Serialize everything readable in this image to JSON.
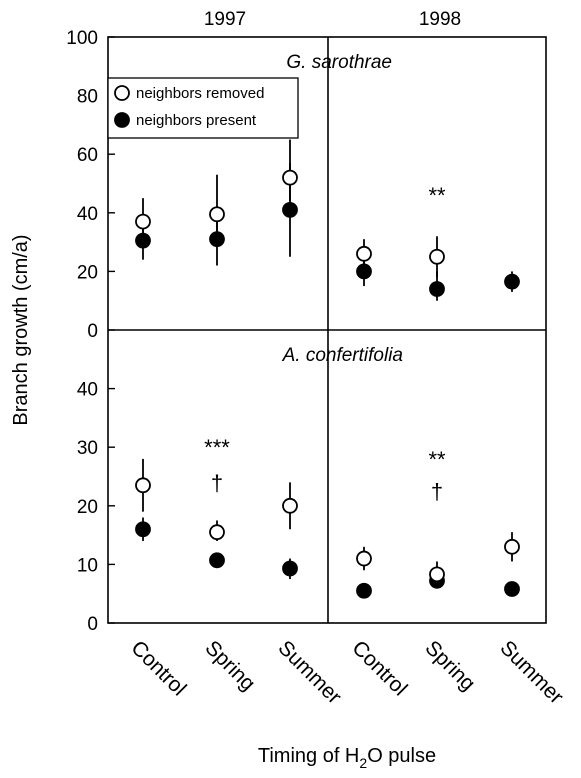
{
  "chart_data": {
    "type": "scatter",
    "ylabel": "Branch growth (cm/a)",
    "xlabel_parts": {
      "before": "Timing of H",
      "sub": "2",
      "after": "O pulse"
    },
    "years": [
      "1997",
      "1998"
    ],
    "categories": [
      "Control",
      "Spring",
      "Summer"
    ],
    "legend": {
      "removed": "neighbors removed",
      "present": "neighbors present",
      "placement": "top-left"
    },
    "panels": [
      {
        "species": "G. sarothrae",
        "ylim": [
          0,
          100
        ],
        "yticks": [
          "0",
          "20",
          "40",
          "60",
          "80",
          "100"
        ],
        "yticks_values": [
          0,
          20,
          40,
          60,
          80,
          100
        ],
        "groups": [
          {
            "year": "1997",
            "removed": [
              {
                "y": 37,
                "lo": 32,
                "hi": 45
              },
              {
                "y": 39.5,
                "lo": 32,
                "hi": 53
              },
              {
                "y": 52,
                "lo": 44,
                "hi": 65
              }
            ],
            "present": [
              {
                "y": 30.5,
                "lo": 24,
                "hi": 36
              },
              {
                "y": 31,
                "lo": 22,
                "hi": 40
              },
              {
                "y": 41,
                "lo": 25,
                "hi": 57
              }
            ],
            "annotations": []
          },
          {
            "year": "1998",
            "removed": [
              {
                "y": 26,
                "lo": 22,
                "hi": 31
              },
              {
                "y": 25,
                "lo": 18,
                "hi": 32
              },
              null
            ],
            "present": [
              {
                "y": 20,
                "lo": 15,
                "hi": 25
              },
              {
                "y": 14,
                "lo": 10,
                "hi": 20
              },
              {
                "y": 16.5,
                "lo": 13,
                "hi": 20
              }
            ],
            "annotations": [
              {
                "cat": 1,
                "text": "**",
                "y": 46
              }
            ]
          }
        ]
      },
      {
        "species": "A. confertifolia",
        "ylim": [
          0,
          50
        ],
        "yticks": [
          "0",
          "10",
          "20",
          "30",
          "40"
        ],
        "yticks_values": [
          0,
          10,
          20,
          30,
          40
        ],
        "groups": [
          {
            "year": "1997",
            "removed": [
              {
                "y": 23.5,
                "lo": 19,
                "hi": 28
              },
              {
                "y": 15.5,
                "lo": 14,
                "hi": 17.5
              },
              {
                "y": 20,
                "lo": 16,
                "hi": 24
              }
            ],
            "present": [
              {
                "y": 16,
                "lo": 14,
                "hi": 18
              },
              {
                "y": 10.7,
                "lo": 9.5,
                "hi": 12
              },
              {
                "y": 9.3,
                "lo": 7.5,
                "hi": 11
              }
            ],
            "annotations": [
              {
                "cat": 1,
                "text": "***",
                "y": 30
              },
              {
                "cat": 1,
                "text": "†",
                "y": 24
              }
            ]
          },
          {
            "year": "1998",
            "removed": [
              {
                "y": 11,
                "lo": 9,
                "hi": 13
              },
              {
                "y": 8.3,
                "lo": 7,
                "hi": 10.5
              },
              {
                "y": 13,
                "lo": 10.5,
                "hi": 15.5
              }
            ],
            "present": [
              {
                "y": 5.5,
                "lo": 4.5,
                "hi": 6.8
              },
              {
                "y": 7.2,
                "lo": 6,
                "hi": 8.5
              },
              {
                "y": 5.8,
                "lo": 5,
                "hi": 6.8
              }
            ],
            "annotations": [
              {
                "cat": 1,
                "text": "**",
                "y": 28
              },
              {
                "cat": 1,
                "text": "†",
                "y": 22.5
              }
            ]
          }
        ]
      }
    ]
  }
}
